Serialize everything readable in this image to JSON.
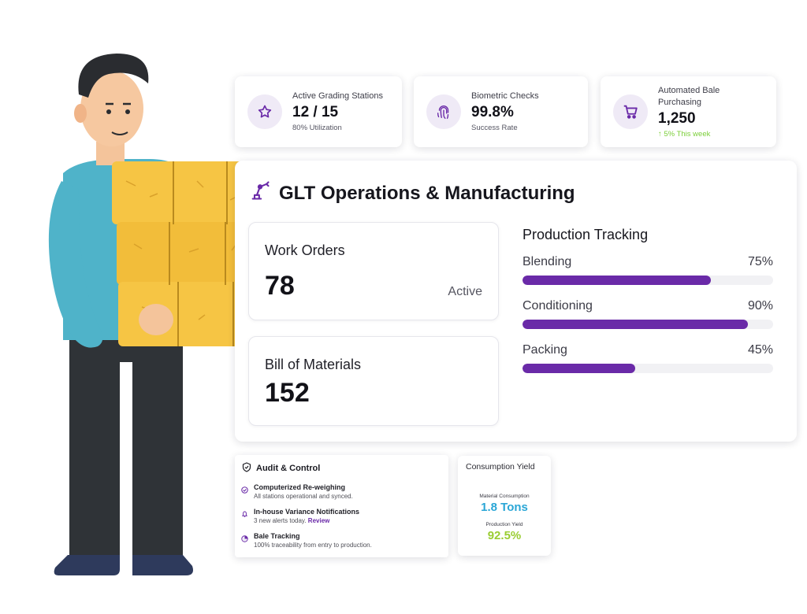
{
  "stats": [
    {
      "label": "Active Grading Stations",
      "value": "12 / 15",
      "sub": "80% Utilization",
      "icon": "star-icon"
    },
    {
      "label": "Biometric Checks",
      "value": "99.8%",
      "sub": "Success Rate",
      "icon": "fingerprint-icon"
    },
    {
      "label_line1": "Automated Bale",
      "label_line2": "Purchasing",
      "value": "1,250",
      "sub": "5% This week",
      "icon": "cart-icon",
      "trend_icon": "arrow-up-icon"
    }
  ],
  "main": {
    "title": "GLT Operations & Manufacturing",
    "title_icon": "robot-arm-icon",
    "work_orders": {
      "label": "Work Orders",
      "value": "78",
      "status": "Active"
    },
    "bom": {
      "label": "Bill of Materials",
      "value": "152"
    },
    "tracking": {
      "title": "Production Tracking",
      "items": [
        {
          "label": "Blending",
          "percent_text": "75%",
          "value": 0.75
        },
        {
          "label": "Conditioning",
          "percent_text": "90%",
          "value": 0.9
        },
        {
          "label": "Packing",
          "percent_text": "45%",
          "value": 0.45
        }
      ]
    }
  },
  "audit": {
    "title": "Audit & Control",
    "items": [
      {
        "title": "Computerized Re-weighing",
        "desc": "All stations operational and synced.",
        "icon": "check-circle-icon"
      },
      {
        "title": "In-house Variance Notifications",
        "desc": "3 new alerts today.",
        "link": "Review",
        "icon": "bell-icon"
      },
      {
        "title": "Bale Tracking",
        "desc": "100% traceability from entry to production.",
        "icon": "pie-icon"
      }
    ]
  },
  "yield": {
    "title": "Consumption Yield",
    "material_label": "Material Consumption",
    "material_value": "1.8 Tons",
    "production_label": "Production Yield",
    "production_value": "92.5%"
  },
  "colors": {
    "accent": "#6a2aa8",
    "accent_light": "#efeaf6",
    "positive": "#7ccf3a",
    "material": "#2aa6d6",
    "yield": "#9acd32"
  }
}
